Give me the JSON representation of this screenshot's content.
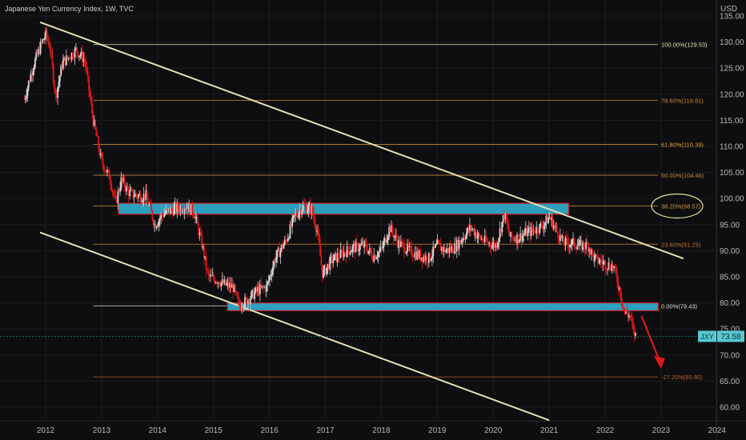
{
  "header": {
    "symbol_title": "Japanese Yen Currency Index, 1W, TVC",
    "currency": "USD"
  },
  "price_tag": {
    "ticker": "JXY",
    "value": "73.58"
  },
  "chart_data": {
    "type": "candlestick",
    "title": "Japanese Yen Currency Index, 1W, TVC",
    "xlabel": "",
    "ylabel": "",
    "ylim": [
      57.5,
      137
    ],
    "xlim": [
      2011.6,
      2024.1
    ],
    "x_ticks": [
      "2012",
      "2013",
      "2014",
      "2015",
      "2016",
      "2017",
      "2018",
      "2019",
      "2020",
      "2021",
      "2022",
      "2023",
      "2024"
    ],
    "y_ticks": [
      "60.00",
      "65.00",
      "70.00",
      "75.00",
      "80.00",
      "85.00",
      "90.00",
      "95.00",
      "100.00",
      "105.00",
      "110.00",
      "115.00",
      "120.00",
      "125.00",
      "130.00",
      "135.00"
    ],
    "price_path": [
      {
        "x": 2011.62,
        "y": 119.0
      },
      {
        "x": 2011.75,
        "y": 124.5
      },
      {
        "x": 2011.9,
        "y": 129.0
      },
      {
        "x": 2012.0,
        "y": 131.5
      },
      {
        "x": 2012.08,
        "y": 129.0
      },
      {
        "x": 2012.18,
        "y": 119.5
      },
      {
        "x": 2012.3,
        "y": 126.0
      },
      {
        "x": 2012.45,
        "y": 127.5
      },
      {
        "x": 2012.55,
        "y": 128.5
      },
      {
        "x": 2012.7,
        "y": 126.5
      },
      {
        "x": 2012.85,
        "y": 115.0
      },
      {
        "x": 2013.0,
        "y": 107.0
      },
      {
        "x": 2013.15,
        "y": 104.0
      },
      {
        "x": 2013.25,
        "y": 99.0
      },
      {
        "x": 2013.35,
        "y": 103.5
      },
      {
        "x": 2013.5,
        "y": 101.0
      },
      {
        "x": 2013.65,
        "y": 100.5
      },
      {
        "x": 2013.8,
        "y": 100.5
      },
      {
        "x": 2013.95,
        "y": 95.0
      },
      {
        "x": 2014.1,
        "y": 97.0
      },
      {
        "x": 2014.3,
        "y": 98.0
      },
      {
        "x": 2014.5,
        "y": 98.5
      },
      {
        "x": 2014.65,
        "y": 97.5
      },
      {
        "x": 2014.8,
        "y": 91.0
      },
      {
        "x": 2014.9,
        "y": 85.0
      },
      {
        "x": 2015.05,
        "y": 84.5
      },
      {
        "x": 2015.2,
        "y": 83.5
      },
      {
        "x": 2015.35,
        "y": 83.0
      },
      {
        "x": 2015.45,
        "y": 79.5
      },
      {
        "x": 2015.6,
        "y": 80.5
      },
      {
        "x": 2015.8,
        "y": 82.5
      },
      {
        "x": 2015.95,
        "y": 83.0
      },
      {
        "x": 2016.1,
        "y": 88.5
      },
      {
        "x": 2016.3,
        "y": 92.0
      },
      {
        "x": 2016.45,
        "y": 96.5
      },
      {
        "x": 2016.6,
        "y": 98.5
      },
      {
        "x": 2016.75,
        "y": 98.0
      },
      {
        "x": 2016.85,
        "y": 94.0
      },
      {
        "x": 2016.95,
        "y": 85.5
      },
      {
        "x": 2017.1,
        "y": 88.0
      },
      {
        "x": 2017.3,
        "y": 89.5
      },
      {
        "x": 2017.5,
        "y": 90.5
      },
      {
        "x": 2017.7,
        "y": 91.0
      },
      {
        "x": 2017.85,
        "y": 89.0
      },
      {
        "x": 2018.0,
        "y": 90.0
      },
      {
        "x": 2018.15,
        "y": 94.5
      },
      {
        "x": 2018.3,
        "y": 91.5
      },
      {
        "x": 2018.5,
        "y": 90.0
      },
      {
        "x": 2018.7,
        "y": 89.0
      },
      {
        "x": 2018.85,
        "y": 88.5
      },
      {
        "x": 2019.0,
        "y": 91.0
      },
      {
        "x": 2019.15,
        "y": 90.0
      },
      {
        "x": 2019.3,
        "y": 90.5
      },
      {
        "x": 2019.45,
        "y": 92.5
      },
      {
        "x": 2019.6,
        "y": 94.5
      },
      {
        "x": 2019.75,
        "y": 92.5
      },
      {
        "x": 2019.9,
        "y": 91.5
      },
      {
        "x": 2020.05,
        "y": 91.0
      },
      {
        "x": 2020.2,
        "y": 97.0
      },
      {
        "x": 2020.3,
        "y": 92.5
      },
      {
        "x": 2020.45,
        "y": 92.5
      },
      {
        "x": 2020.6,
        "y": 93.5
      },
      {
        "x": 2020.75,
        "y": 94.0
      },
      {
        "x": 2020.9,
        "y": 95.0
      },
      {
        "x": 2021.0,
        "y": 96.5
      },
      {
        "x": 2021.1,
        "y": 94.5
      },
      {
        "x": 2021.25,
        "y": 91.5
      },
      {
        "x": 2021.4,
        "y": 91.5
      },
      {
        "x": 2021.55,
        "y": 91.0
      },
      {
        "x": 2021.7,
        "y": 91.0
      },
      {
        "x": 2021.8,
        "y": 88.5
      },
      {
        "x": 2022.0,
        "y": 87.5
      },
      {
        "x": 2022.15,
        "y": 87.0
      },
      {
        "x": 2022.25,
        "y": 83.0
      },
      {
        "x": 2022.35,
        "y": 78.0
      },
      {
        "x": 2022.45,
        "y": 77.5
      },
      {
        "x": 2022.5,
        "y": 74.5
      },
      {
        "x": 2022.55,
        "y": 73.58
      }
    ],
    "fib_levels": [
      {
        "label": "100.00%(129.53)",
        "value": 129.53,
        "color": "#e9e3b5",
        "x_start": 2012.85
      },
      {
        "label": "78.60%(118.81)",
        "value": 118.81,
        "color": "#d08a2c",
        "x_start": 2012.85
      },
      {
        "label": "61.80%(110.39)",
        "value": 110.39,
        "color": "#e0a43a",
        "x_start": 2012.85
      },
      {
        "label": "50.00%(104.48)",
        "value": 104.48,
        "color": "#c98a3a",
        "x_start": 2012.85
      },
      {
        "label": "38.20%(98.57)",
        "value": 98.57,
        "color": "#d89a3a",
        "x_start": 2012.85
      },
      {
        "label": "23.60%(91.25)",
        "value": 91.25,
        "color": "#c07a30",
        "x_start": 2012.85
      },
      {
        "label": "0.00%(79.43)",
        "value": 79.43,
        "color": "#e0e0e0",
        "x_start": 2012.85
      },
      {
        "label": "-27.20%(65.80)",
        "value": 65.8,
        "color": "#c0602a",
        "x_start": 2012.85
      }
    ],
    "zones": [
      {
        "y_low": 97.0,
        "y_high": 99.1,
        "x_start": 2013.3,
        "x_end": 2021.35
      },
      {
        "y_low": 78.5,
        "y_high": 80.0,
        "x_start": 2015.25,
        "x_end": 2022.95
      }
    ],
    "trendlines": [
      {
        "x1": 2011.9,
        "y1": 133.8,
        "x2": 2023.4,
        "y2": 88.5
      },
      {
        "x1": 2011.9,
        "y1": 93.5,
        "x2": 2021.0,
        "y2": 57.5
      }
    ],
    "annotations": {
      "circled_level": 98.57,
      "projection_arrow": {
        "from_x": 2022.65,
        "from_y": 77.5,
        "to_x": 2023.0,
        "to_y": 68.0
      }
    }
  },
  "colors": {
    "background": "#0e0e10",
    "grid": "#1c1c20",
    "up": "#d8d8d8",
    "down": "#e01818",
    "trendline": "#e6e0b4",
    "zone_fill": "#2ea6c8",
    "zone_border": "#d81e1e",
    "price_tag": "#58c8d4",
    "circle": "#e8e0a0",
    "arrow": "#e01818",
    "axis_text": "#b8b8b8"
  }
}
